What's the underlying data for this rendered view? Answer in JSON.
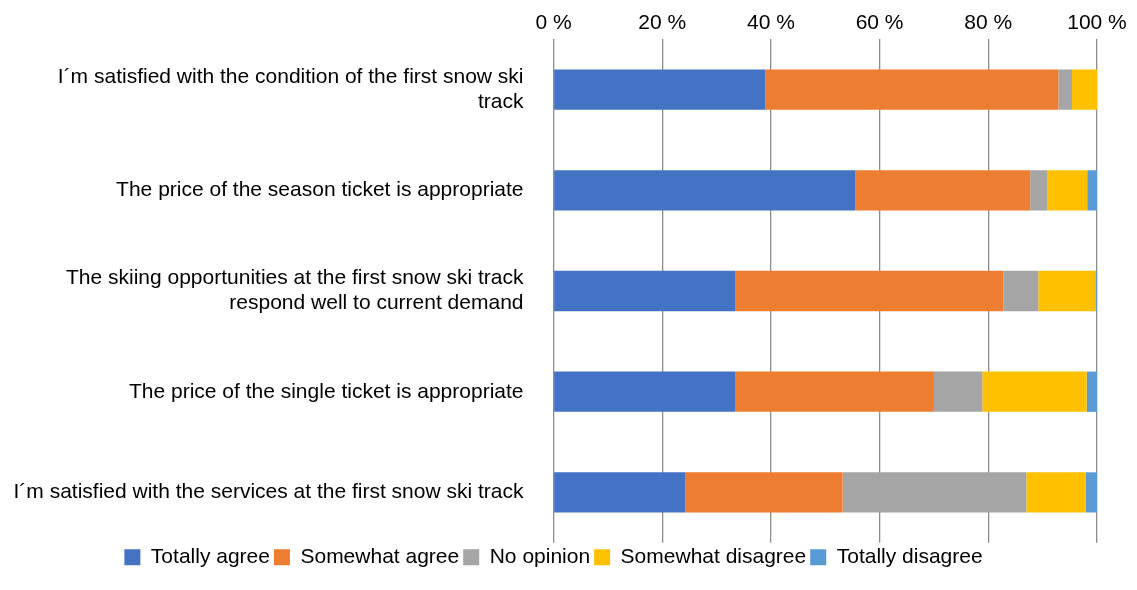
{
  "chart_data": {
    "type": "bar",
    "orientation": "horizontal",
    "stacked": true,
    "categories": [
      "I´m satisfied with the condition of the first snow ski track",
      "The price of the season ticket is appropriate",
      "The skiing opportunities at the first snow ski track respond well to current demand",
      "The price of the single ticket is appropriate",
      "I´m satisfied with the services at the first snow ski track"
    ],
    "series": [
      {
        "name": "Totally agree",
        "color": "#4472c4",
        "values": [
          39.0,
          55.5,
          33.5,
          33.4,
          24.3
        ]
      },
      {
        "name": "Somewhat agree",
        "color": "#ed7d31",
        "values": [
          53.9,
          32.2,
          49.3,
          36.6,
          28.9
        ]
      },
      {
        "name": "No opinion",
        "color": "#a5a5a5",
        "values": [
          2.5,
          3.1,
          6.4,
          8.9,
          33.8
        ]
      },
      {
        "name": "Somewhat disagree",
        "color": "#ffc000",
        "values": [
          4.6,
          7.4,
          10.5,
          19.2,
          10.9
        ]
      },
      {
        "name": "Totally disagree",
        "color": "#5b9bd5",
        "values": [
          0,
          1.8,
          0.3,
          1.9,
          2.1
        ]
      }
    ],
    "xlim": [
      0,
      100
    ],
    "xticks": [
      {
        "value": 0,
        "label": "0 %"
      },
      {
        "value": 20,
        "label": "20 %"
      },
      {
        "value": 40,
        "label": "40 %"
      },
      {
        "value": 60,
        "label": "60 %"
      },
      {
        "value": 80,
        "label": "80 %"
      },
      {
        "value": 100,
        "label": "100 %"
      }
    ],
    "grid": "x",
    "legend": "bottom"
  }
}
